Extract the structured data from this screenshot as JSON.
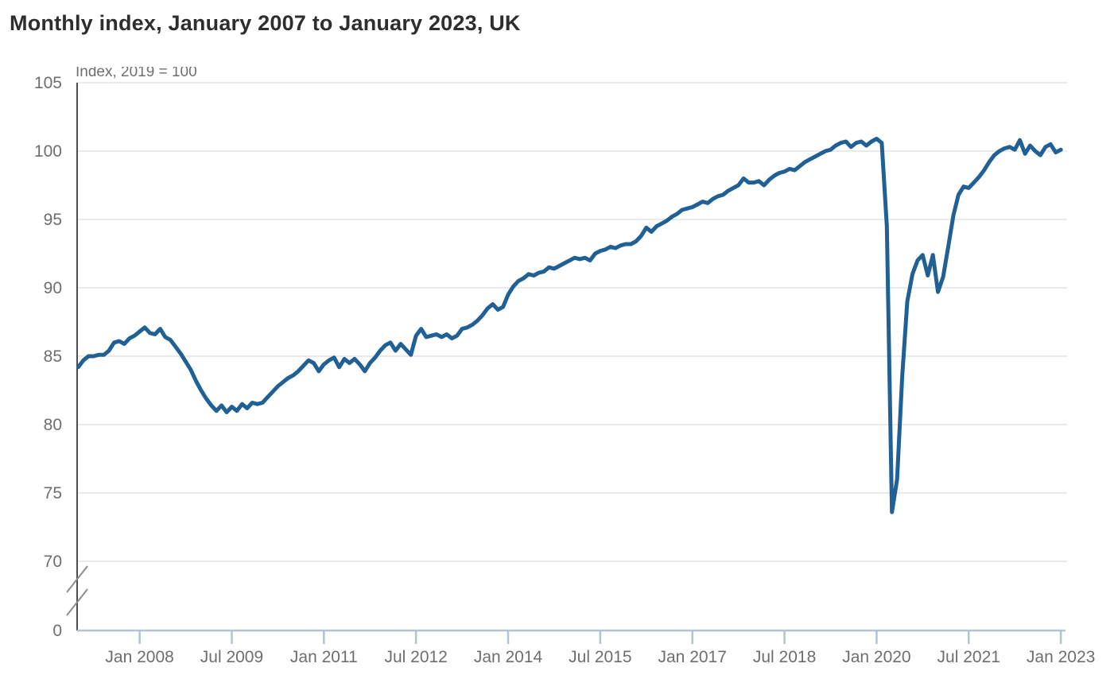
{
  "chart_data": {
    "type": "line",
    "title": "Monthly index, January 2007 to January 2023, UK",
    "subtitle": "Index, 2019 = 100",
    "x_start_month": "January 2007",
    "x_end_month": "January 2023",
    "x_tick_labels": [
      "Jan 2008",
      "Jul 2009",
      "Jan 2011",
      "Jul 2012",
      "Jan 2014",
      "Jul 2015",
      "Jan 2017",
      "Jul 2018",
      "Jan 2020",
      "Jul 2021",
      "Jan 2023"
    ],
    "x_tick_month_indices": [
      12,
      30,
      48,
      66,
      84,
      102,
      120,
      138,
      156,
      174,
      192
    ],
    "y_ticks": [
      0,
      70,
      75,
      80,
      85,
      90,
      95,
      100,
      105
    ],
    "y_gridline_values": [
      70,
      75,
      80,
      85,
      90,
      95,
      100,
      105
    ],
    "y_axis_break": true,
    "ylim_data_region": [
      70,
      105
    ],
    "grid": true,
    "legend": "none",
    "colors": {
      "line": "#206095",
      "grid": "#e4e4e4",
      "y_axis": "#4d4d4d",
      "x_axis": "#b4c3d3",
      "tick_text": "#6e6e6e",
      "title_text": "#2e2e2e",
      "break_mark": "#8c8c8c"
    },
    "series": [
      {
        "name": "Monthly index",
        "start": "2007-01",
        "frequency": "monthly",
        "values": [
          84.2,
          84.7,
          85.0,
          85.0,
          85.1,
          85.1,
          85.4,
          86.0,
          86.1,
          85.9,
          86.3,
          86.5,
          86.8,
          87.1,
          86.7,
          86.6,
          87.0,
          86.4,
          86.2,
          85.7,
          85.2,
          84.6,
          84.0,
          83.2,
          82.5,
          81.9,
          81.4,
          81.0,
          81.4,
          80.9,
          81.3,
          81.0,
          81.5,
          81.2,
          81.6,
          81.5,
          81.6,
          82.0,
          82.4,
          82.8,
          83.1,
          83.4,
          83.6,
          83.9,
          84.3,
          84.7,
          84.5,
          83.9,
          84.4,
          84.7,
          84.9,
          84.2,
          84.8,
          84.5,
          84.8,
          84.4,
          83.9,
          84.5,
          84.9,
          85.4,
          85.8,
          86.0,
          85.4,
          85.9,
          85.5,
          85.1,
          86.5,
          87.0,
          86.4,
          86.5,
          86.6,
          86.4,
          86.6,
          86.3,
          86.5,
          87.0,
          87.1,
          87.3,
          87.6,
          88.0,
          88.5,
          88.8,
          88.4,
          88.6,
          89.5,
          90.1,
          90.5,
          90.7,
          91.0,
          90.9,
          91.1,
          91.2,
          91.5,
          91.4,
          91.6,
          91.8,
          92.0,
          92.2,
          92.1,
          92.2,
          92.0,
          92.5,
          92.7,
          92.8,
          93.0,
          92.9,
          93.1,
          93.2,
          93.2,
          93.4,
          93.8,
          94.4,
          94.1,
          94.5,
          94.7,
          94.9,
          95.2,
          95.4,
          95.7,
          95.8,
          95.9,
          96.1,
          96.3,
          96.2,
          96.5,
          96.7,
          96.8,
          97.1,
          97.3,
          97.5,
          98.0,
          97.7,
          97.7,
          97.8,
          97.5,
          97.9,
          98.2,
          98.4,
          98.5,
          98.7,
          98.6,
          98.9,
          99.2,
          99.4,
          99.6,
          99.8,
          100.0,
          100.1,
          100.4,
          100.6,
          100.7,
          100.3,
          100.6,
          100.7,
          100.4,
          100.7,
          100.9,
          100.6,
          94.5,
          73.6,
          76.0,
          83.5,
          89.0,
          91.0,
          92.0,
          92.4,
          90.9,
          92.4,
          89.7,
          90.8,
          93.0,
          95.3,
          96.8,
          97.4,
          97.3,
          97.7,
          98.1,
          98.6,
          99.2,
          99.7,
          100.0,
          100.2,
          100.3,
          100.1,
          100.8,
          99.8,
          100.4,
          100.0,
          99.7,
          100.3,
          100.5,
          99.9,
          100.1
        ]
      }
    ]
  }
}
